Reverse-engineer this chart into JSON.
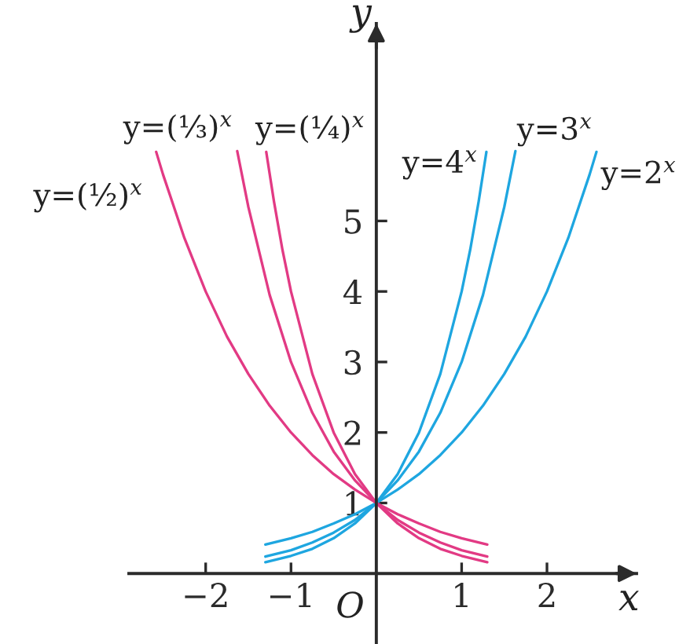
{
  "chart_data": {
    "type": "line",
    "xlabel": "x",
    "ylabel": "y",
    "xlim": [
      -2.9,
      3.05
    ],
    "ylim": [
      -1,
      7.8
    ],
    "xticks": [
      {
        "value": -2,
        "label": "−2"
      },
      {
        "value": -1,
        "label": "−1"
      },
      1,
      2
    ],
    "yticks": [
      1,
      2,
      3,
      4,
      5
    ],
    "annotations": [
      "O"
    ],
    "series": [
      {
        "name": "y=2$^{x}$",
        "color": "#1ea6e0",
        "x": [
          -1.3,
          -1,
          -0.75,
          -0.5,
          -0.25,
          0,
          0.25,
          0.5,
          0.75,
          1,
          1.25,
          1.5,
          1.75,
          2,
          2.25,
          2.5,
          2.58
        ],
        "values": [
          0.41,
          0.5,
          0.59,
          0.71,
          0.84,
          1,
          1.19,
          1.41,
          1.68,
          2,
          2.38,
          2.83,
          3.36,
          4,
          4.76,
          5.66,
          5.98
        ]
      },
      {
        "name": "y=3$^{x}$",
        "color": "#1ea6e0",
        "x": [
          -1.3,
          -1,
          -0.75,
          -0.5,
          -0.25,
          0,
          0.25,
          0.5,
          0.75,
          1,
          1.25,
          1.5,
          1.63
        ],
        "values": [
          0.24,
          0.33,
          0.44,
          0.58,
          0.76,
          1,
          1.32,
          1.73,
          2.28,
          3,
          3.95,
          5.2,
          5.99
        ]
      },
      {
        "name": "y=4$^{x}$",
        "color": "#1ea6e0",
        "x": [
          -1.3,
          -1,
          -0.75,
          -0.5,
          -0.25,
          0,
          0.25,
          0.5,
          0.75,
          1,
          1.1,
          1.2,
          1.29
        ],
        "values": [
          0.16,
          0.25,
          0.35,
          0.5,
          0.71,
          1,
          1.41,
          2,
          2.83,
          4,
          4.59,
          5.28,
          5.98
        ]
      },
      {
        "name": "y=(½)$^{x}$",
        "color": "#e23a84",
        "x": [
          -2.58,
          -2.5,
          -2.25,
          -2,
          -1.75,
          -1.5,
          -1.25,
          -1,
          -0.75,
          -0.5,
          -0.25,
          0,
          0.25,
          0.5,
          0.75,
          1,
          1.3
        ],
        "values": [
          5.98,
          5.66,
          4.76,
          4,
          3.36,
          2.83,
          2.38,
          2,
          1.68,
          1.41,
          1.19,
          1,
          0.84,
          0.71,
          0.59,
          0.5,
          0.41
        ]
      },
      {
        "name": "y=(⅓)$^{x}$",
        "color": "#e23a84",
        "x": [
          -1.63,
          -1.5,
          -1.25,
          -1,
          -0.75,
          -0.5,
          -0.25,
          0,
          0.25,
          0.5,
          0.75,
          1,
          1.3
        ],
        "values": [
          5.99,
          5.2,
          3.95,
          3,
          2.28,
          1.73,
          1.32,
          1,
          0.76,
          0.58,
          0.44,
          0.33,
          0.24
        ]
      },
      {
        "name": "y=(¼)$^{x}$",
        "color": "#e23a84",
        "x": [
          -1.29,
          -1.2,
          -1.1,
          -1,
          -0.75,
          -0.5,
          -0.25,
          0,
          0.25,
          0.5,
          0.75,
          1,
          1.3
        ],
        "values": [
          5.98,
          5.28,
          4.59,
          4,
          2.83,
          2,
          1.41,
          1,
          0.71,
          0.5,
          0.35,
          0.25,
          0.16
        ]
      }
    ]
  }
}
